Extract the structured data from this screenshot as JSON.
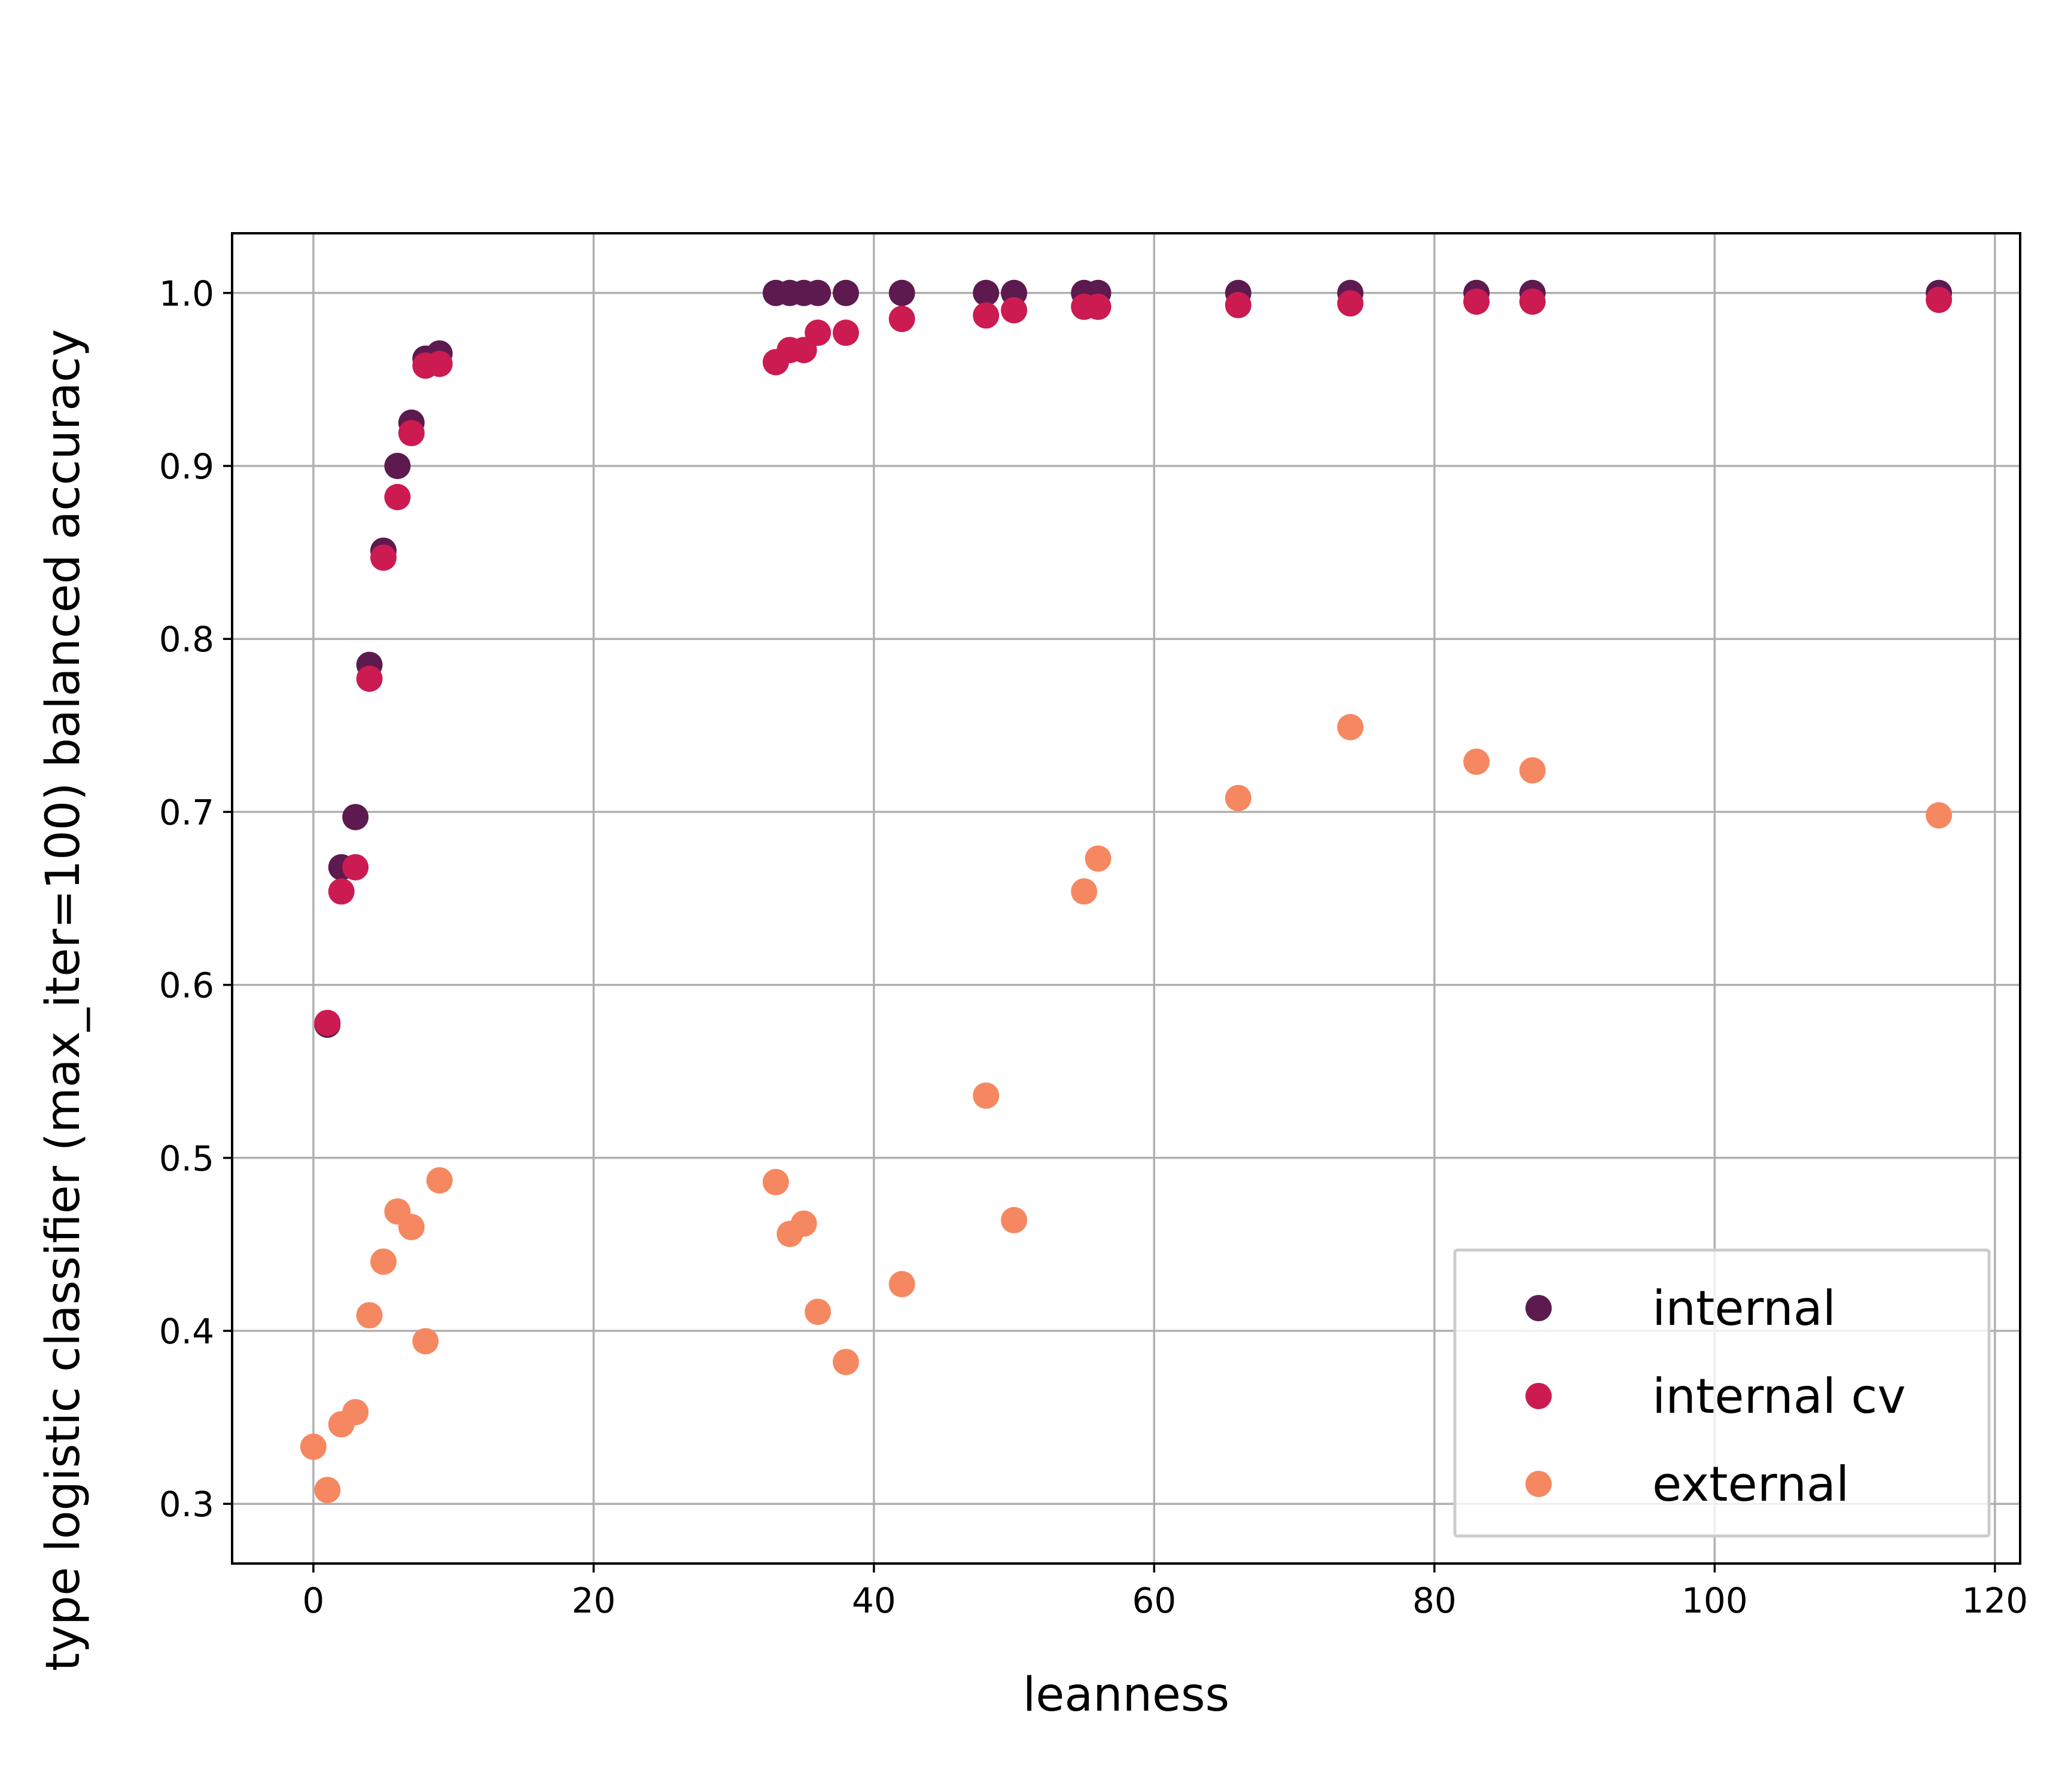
{
  "chart_data": {
    "type": "scatter",
    "xlabel": "leanness",
    "ylabel": "type logistic classifier (max_iter=100) balanced accuracy",
    "xlim": [
      -5.8,
      121.8
    ],
    "ylim": [
      0.2655,
      1.0345
    ],
    "xticks": [
      0,
      20,
      40,
      60,
      80,
      100,
      120
    ],
    "yticks": [
      0.3,
      0.4,
      0.5,
      0.6,
      0.7,
      0.8,
      0.9,
      1.0
    ],
    "xtick_labels": [
      "0",
      "20",
      "40",
      "60",
      "80",
      "100",
      "120"
    ],
    "ytick_labels": [
      "0.3",
      "0.4",
      "0.5",
      "0.6",
      "0.7",
      "0.8",
      "0.9",
      "1.0"
    ],
    "grid": true,
    "legend_position": "lower right",
    "series": [
      {
        "name": "internal",
        "color": "#5c1a4f",
        "points": [
          [
            1,
            0.577
          ],
          [
            2,
            0.668
          ],
          [
            3,
            0.697
          ],
          [
            4,
            0.785
          ],
          [
            5,
            0.851
          ],
          [
            6,
            0.9
          ],
          [
            7,
            0.925
          ],
          [
            8,
            0.962
          ],
          [
            9,
            0.965
          ],
          [
            33,
            1.0
          ],
          [
            34,
            1.0
          ],
          [
            35,
            1.0
          ],
          [
            36,
            1.0
          ],
          [
            38,
            1.0
          ],
          [
            42,
            1.0
          ],
          [
            48,
            1.0
          ],
          [
            50,
            1.0
          ],
          [
            55,
            1.0
          ],
          [
            56,
            1.0
          ],
          [
            66,
            1.0
          ],
          [
            74,
            1.0
          ],
          [
            83,
            1.0
          ],
          [
            87,
            1.0
          ],
          [
            116,
            1.0
          ]
        ]
      },
      {
        "name": "internal cv",
        "color": "#cb1b50",
        "points": [
          [
            1,
            0.578
          ],
          [
            2,
            0.654
          ],
          [
            3,
            0.668
          ],
          [
            4,
            0.777
          ],
          [
            5,
            0.847
          ],
          [
            6,
            0.882
          ],
          [
            7,
            0.919
          ],
          [
            8,
            0.958
          ],
          [
            9,
            0.959
          ],
          [
            33,
            0.96
          ],
          [
            34,
            0.967
          ],
          [
            35,
            0.967
          ],
          [
            36,
            0.977
          ],
          [
            38,
            0.977
          ],
          [
            42,
            0.985
          ],
          [
            48,
            0.987
          ],
          [
            50,
            0.99
          ],
          [
            55,
            0.992
          ],
          [
            56,
            0.992
          ],
          [
            66,
            0.993
          ],
          [
            74,
            0.994
          ],
          [
            83,
            0.995
          ],
          [
            87,
            0.995
          ],
          [
            116,
            0.996
          ]
        ]
      },
      {
        "name": "external",
        "color": "#f58860",
        "points": [
          [
            0,
            0.333
          ],
          [
            1,
            0.308
          ],
          [
            2,
            0.346
          ],
          [
            3,
            0.353
          ],
          [
            4,
            0.409
          ],
          [
            5,
            0.44
          ],
          [
            6,
            0.469
          ],
          [
            7,
            0.46
          ],
          [
            8,
            0.394
          ],
          [
            9,
            0.487
          ],
          [
            33,
            0.486
          ],
          [
            34,
            0.456
          ],
          [
            35,
            0.462
          ],
          [
            36,
            0.411
          ],
          [
            38,
            0.382
          ],
          [
            42,
            0.427
          ],
          [
            48,
            0.536
          ],
          [
            50,
            0.464
          ],
          [
            55,
            0.654
          ],
          [
            56,
            0.673
          ],
          [
            66,
            0.708
          ],
          [
            74,
            0.749
          ],
          [
            83,
            0.729
          ],
          [
            87,
            0.724
          ],
          [
            116,
            0.698
          ]
        ]
      }
    ]
  }
}
